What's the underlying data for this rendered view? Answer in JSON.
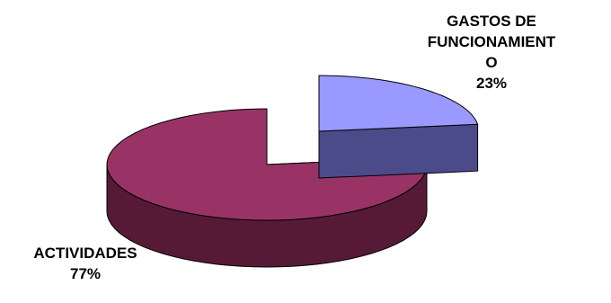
{
  "chart_data": {
    "type": "pie",
    "style": "3d-exploded",
    "slices": [
      {
        "label_lines": [
          "GASTOS DE",
          "FUNCIONAMIENT",
          "O"
        ],
        "percent_label": "23%",
        "value": 23,
        "color_top": "#9999ff",
        "color_side": "#4b4b8a"
      },
      {
        "label_lines": [
          "ACTIVIDADES"
        ],
        "percent_label": "77%",
        "value": 77,
        "color_top": "#993366",
        "color_side": "#561a37"
      }
    ],
    "title": "",
    "legend": "none"
  }
}
